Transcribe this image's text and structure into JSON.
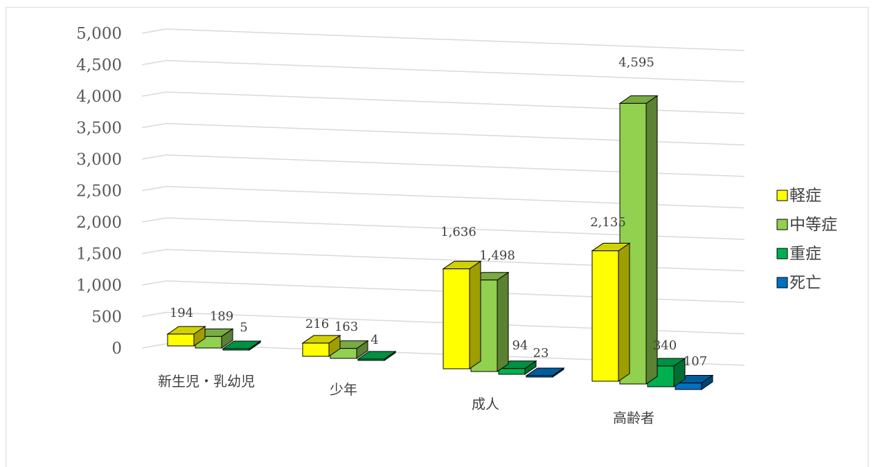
{
  "chart_data": {
    "type": "bar",
    "categories": [
      "新生児・乳幼児",
      "少年",
      "成人",
      "高齢者"
    ],
    "series": [
      {
        "name": "軽症",
        "values": [
          194,
          216,
          1636,
          2135
        ]
      },
      {
        "name": "中等症",
        "values": [
          189,
          163,
          1498,
          4595
        ]
      },
      {
        "name": "重症",
        "values": [
          5,
          4,
          94,
          340
        ]
      },
      {
        "name": "死亡",
        "values": [
          null,
          null,
          23,
          107
        ]
      }
    ],
    "value_labels": [
      [
        "194",
        "216",
        "1,636",
        "2,135"
      ],
      [
        "189",
        "163",
        "1,498",
        "4,595"
      ],
      [
        "5",
        "4",
        "94",
        "340"
      ],
      [
        "",
        "",
        "23",
        "107"
      ]
    ],
    "ylim": [
      0,
      5000
    ],
    "yticks": [
      "0",
      "500",
      "1,000",
      "1,500",
      "2,000",
      "2,500",
      "3,000",
      "3,500",
      "4,000",
      "4,500",
      "5,000"
    ],
    "grid": true,
    "legend": "right",
    "colors": [
      "#ffff00",
      "#92d050",
      "#00b050",
      "#0070c0"
    ]
  }
}
